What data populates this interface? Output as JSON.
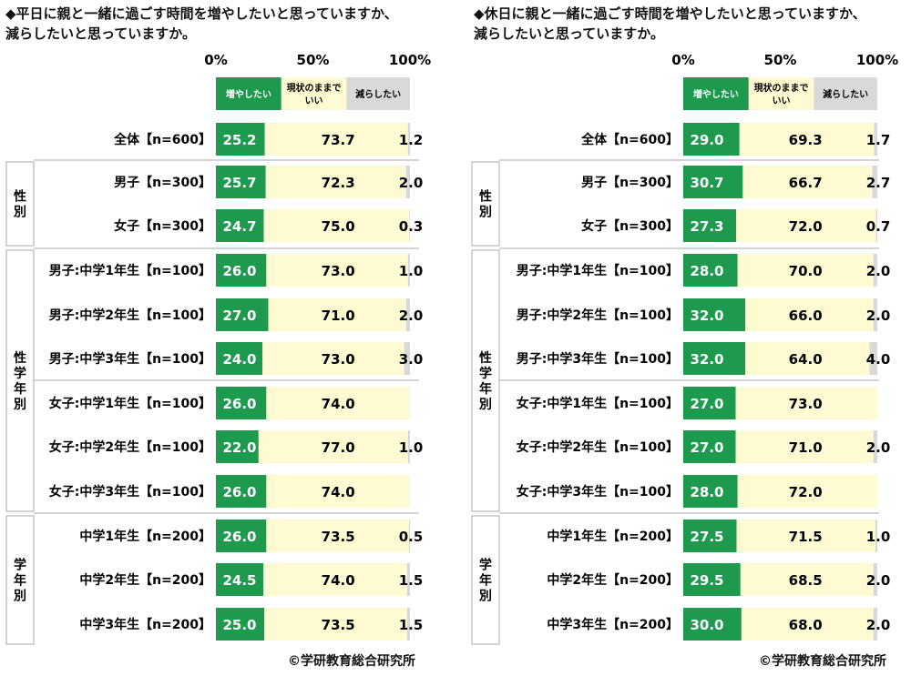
{
  "colors": {
    "increase": "#1e9a4e",
    "current": "#fefbd2",
    "decrease": "#d9d9d9",
    "border": "#aaaaaa"
  },
  "axis_ticks": [
    "0%",
    "50%",
    "100%"
  ],
  "legend": {
    "increase": "増やしたい",
    "current_line1": "現状のままで",
    "current_line2": "いい",
    "decrease": "減らしたい"
  },
  "groups": {
    "sex": "性別",
    "sex_grade": "性学年別",
    "grade": "学年別"
  },
  "copyright": "©学研教育総合研究所",
  "chart_data": [
    {
      "type": "bar",
      "stacked": true,
      "orientation": "horizontal",
      "title": "◆平日に親と一緒に過ごす時間を増やしたいと思っていますか、\n減らしたいと思っていますか。",
      "series_names": [
        "増やしたい",
        "現状のままでいい",
        "減らしたい"
      ],
      "xlim": [
        0,
        100
      ],
      "rows": [
        {
          "label": "全体【n=600】",
          "values": [
            25.2,
            73.7,
            1.2
          ],
          "labels": [
            "25.2",
            "73.7",
            "1.2"
          ]
        },
        {
          "label": "男子【n=300】",
          "values": [
            25.7,
            72.3,
            2.0
          ],
          "labels": [
            "25.7",
            "72.3",
            "2.0"
          ]
        },
        {
          "label": "女子【n=300】",
          "values": [
            24.7,
            75.0,
            0.3
          ],
          "labels": [
            "24.7",
            "75.0",
            "0.3"
          ]
        },
        {
          "label": "男子:中学1年生【n=100】",
          "values": [
            26.0,
            73.0,
            1.0
          ],
          "labels": [
            "26.0",
            "73.0",
            "1.0"
          ]
        },
        {
          "label": "男子:中学2年生【n=100】",
          "values": [
            27.0,
            71.0,
            2.0
          ],
          "labels": [
            "27.0",
            "71.0",
            "2.0"
          ]
        },
        {
          "label": "男子:中学3年生【n=100】",
          "values": [
            24.0,
            73.0,
            3.0
          ],
          "labels": [
            "24.0",
            "73.0",
            "3.0"
          ]
        },
        {
          "label": "女子:中学1年生【n=100】",
          "values": [
            26.0,
            74.0,
            0
          ],
          "labels": [
            "26.0",
            "74.0",
            ""
          ]
        },
        {
          "label": "女子:中学2年生【n=100】",
          "values": [
            22.0,
            77.0,
            1.0
          ],
          "labels": [
            "22.0",
            "77.0",
            "1.0"
          ]
        },
        {
          "label": "女子:中学3年生【n=100】",
          "values": [
            26.0,
            74.0,
            0
          ],
          "labels": [
            "26.0",
            "74.0",
            ""
          ]
        },
        {
          "label": "中学1年生【n=200】",
          "values": [
            26.0,
            73.5,
            0.5
          ],
          "labels": [
            "26.0",
            "73.5",
            "0.5"
          ]
        },
        {
          "label": "中学2年生【n=200】",
          "values": [
            24.5,
            74.0,
            1.5
          ],
          "labels": [
            "24.5",
            "74.0",
            "1.5"
          ]
        },
        {
          "label": "中学3年生【n=200】",
          "values": [
            25.0,
            73.5,
            1.5
          ],
          "labels": [
            "25.0",
            "73.5",
            "1.5"
          ]
        }
      ]
    },
    {
      "type": "bar",
      "stacked": true,
      "orientation": "horizontal",
      "title": "◆休日に親と一緒に過ごす時間を増やしたいと思っていますか、\n減らしたいと思っていますか。",
      "series_names": [
        "増やしたい",
        "現状のままでいい",
        "減らしたい"
      ],
      "xlim": [
        0,
        100
      ],
      "rows": [
        {
          "label": "全体【n=600】",
          "values": [
            29.0,
            69.3,
            1.7
          ],
          "labels": [
            "29.0",
            "69.3",
            "1.7"
          ]
        },
        {
          "label": "男子【n=300】",
          "values": [
            30.7,
            66.7,
            2.7
          ],
          "labels": [
            "30.7",
            "66.7",
            "2.7"
          ]
        },
        {
          "label": "女子【n=300】",
          "values": [
            27.3,
            72.0,
            0.7
          ],
          "labels": [
            "27.3",
            "72.0",
            "0.7"
          ]
        },
        {
          "label": "男子:中学1年生【n=100】",
          "values": [
            28.0,
            70.0,
            2.0
          ],
          "labels": [
            "28.0",
            "70.0",
            "2.0"
          ]
        },
        {
          "label": "男子:中学2年生【n=100】",
          "values": [
            32.0,
            66.0,
            2.0
          ],
          "labels": [
            "32.0",
            "66.0",
            "2.0"
          ]
        },
        {
          "label": "男子:中学3年生【n=100】",
          "values": [
            32.0,
            64.0,
            4.0
          ],
          "labels": [
            "32.0",
            "64.0",
            "4.0"
          ]
        },
        {
          "label": "女子:中学1年生【n=100】",
          "values": [
            27.0,
            73.0,
            0
          ],
          "labels": [
            "27.0",
            "73.0",
            ""
          ]
        },
        {
          "label": "女子:中学2年生【n=100】",
          "values": [
            27.0,
            71.0,
            2.0
          ],
          "labels": [
            "27.0",
            "71.0",
            "2.0"
          ]
        },
        {
          "label": "女子:中学3年生【n=100】",
          "values": [
            28.0,
            72.0,
            0
          ],
          "labels": [
            "28.0",
            "72.0",
            ""
          ]
        },
        {
          "label": "中学1年生【n=200】",
          "values": [
            27.5,
            71.5,
            1.0
          ],
          "labels": [
            "27.5",
            "71.5",
            "1.0"
          ]
        },
        {
          "label": "中学2年生【n=200】",
          "values": [
            29.5,
            68.5,
            2.0
          ],
          "labels": [
            "29.5",
            "68.5",
            "2.0"
          ]
        },
        {
          "label": "中学3年生【n=200】",
          "values": [
            30.0,
            68.0,
            2.0
          ],
          "labels": [
            "30.0",
            "68.0",
            "2.0"
          ]
        }
      ]
    }
  ]
}
